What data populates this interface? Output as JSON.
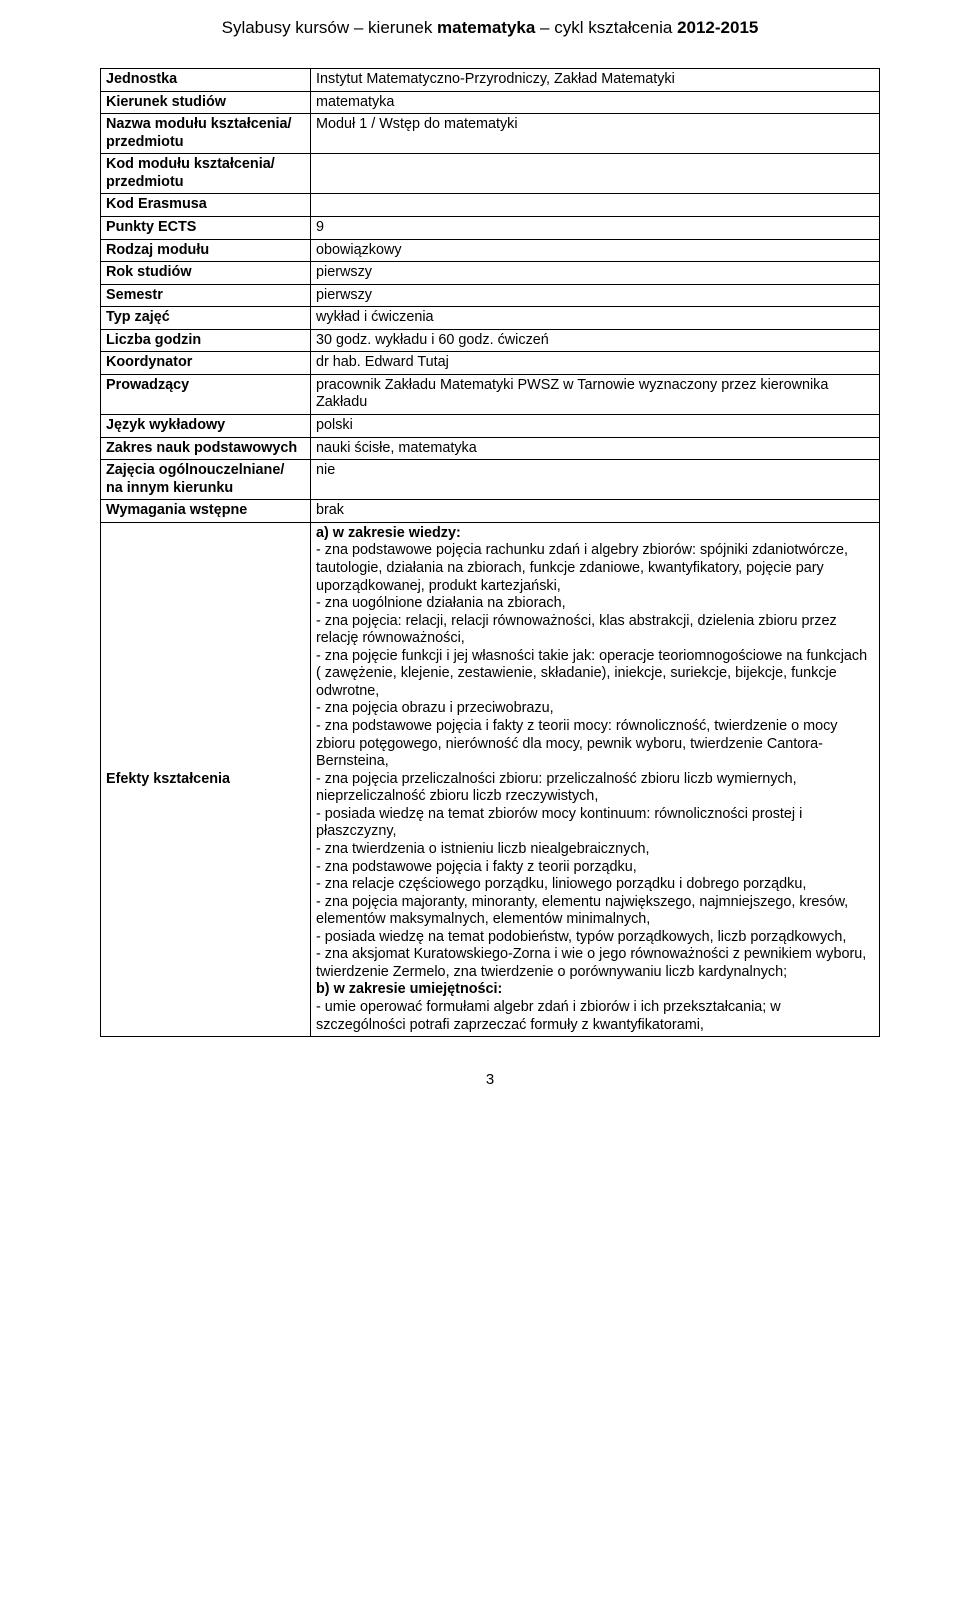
{
  "header": {
    "pre": "Sylabusy kursów – kierunek ",
    "kw1": "matematyka",
    "mid": " – cykl kształcenia ",
    "kw2": "2012-2015"
  },
  "rows": [
    {
      "label": "Jednostka",
      "value": "Instytut Matematyczno-Przyrodniczy, Zakład Matematyki"
    },
    {
      "label": "Kierunek studiów",
      "value": "matematyka"
    },
    {
      "label": "Nazwa modułu kształcenia/ przedmiotu",
      "value": "Moduł 1 / Wstęp do matematyki"
    },
    {
      "label": "Kod modułu kształcenia/ przedmiotu",
      "value": ""
    },
    {
      "label": "Kod Erasmusa",
      "value": ""
    },
    {
      "label": "Punkty ECTS",
      "value": "9"
    },
    {
      "label": "Rodzaj modułu",
      "value": "obowiązkowy"
    },
    {
      "label": "Rok studiów",
      "value": "pierwszy"
    },
    {
      "label": "Semestr",
      "value": "pierwszy"
    },
    {
      "label": "Typ zajęć",
      "value": "wykład i ćwiczenia"
    },
    {
      "label": "Liczba godzin",
      "value": "30 godz. wykładu i 60 godz. ćwiczeń"
    },
    {
      "label": "Koordynator",
      "value": "dr hab. Edward Tutaj"
    },
    {
      "label": "Prowadzący",
      "value": "pracownik Zakładu Matematyki PWSZ w Tarnowie wyznaczony przez kierownika Zakładu"
    },
    {
      "label": "Język wykładowy",
      "value": "polski"
    },
    {
      "label": "Zakres nauk podstawowych",
      "value": "nauki ścisłe, matematyka"
    },
    {
      "label": "Zajęcia ogólnouczelniane/ na innym kierunku",
      "value": "nie"
    },
    {
      "label": "Wymagania wstępne",
      "value": "brak"
    }
  ],
  "efekty": {
    "label": "Efekty kształcenia",
    "heading_a": "a) w zakresie wiedzy:",
    "lines_a": [
      "- zna podstawowe pojęcia rachunku zdań i algebry zbiorów: spójniki zdaniotwórcze, tautologie, działania na zbiorach, funkcje zdaniowe, kwantyfikatory, pojęcie pary uporządkowanej, produkt kartezjański,",
      "- zna uogólnione działania na zbiorach,",
      "- zna pojęcia: relacji, relacji równoważności, klas abstrakcji, dzielenia zbioru przez relację równoważności,",
      "- zna pojęcie funkcji i jej własności takie jak: operacje teoriomnogościowe na funkcjach ( zawężenie, klejenie, zestawienie, składanie), iniekcje, suriekcje, bijekcje, funkcje odwrotne,",
      "- zna pojęcia obrazu i przeciwobrazu,",
      "- zna podstawowe pojęcia i fakty z teorii mocy: równoliczność, twierdzenie o mocy zbioru potęgowego, nierówność dla mocy, pewnik wyboru, twierdzenie Cantora-Bernsteina,",
      "- zna pojęcia przeliczalności zbioru: przeliczalność zbioru liczb wymiernych, nieprzeliczalność zbioru liczb rzeczywistych,",
      "- posiada wiedzę na temat zbiorów mocy kontinuum: równoliczności prostej i płaszczyzny,",
      "- zna twierdzenia o istnieniu liczb niealgebraicznych,",
      "- zna podstawowe pojęcia i fakty z teorii porządku,",
      "- zna relacje częściowego porządku, liniowego porządku i dobrego porządku,",
      "- zna pojęcia majoranty, minoranty, elementu największego, najmniejszego, kresów, elementów maksymalnych, elementów minimalnych,",
      "- posiada wiedzę na temat podobieństw, typów porządkowych, liczb porządkowych,",
      "- zna aksjomat Kuratowskiego-Zorna i wie o  jego równoważności z pewnikiem wyboru, twierdzenie Zermelo, zna twierdzenie o porównywaniu liczb kardynalnych;"
    ],
    "heading_b": "b) w zakresie umiejętności:",
    "lines_b": [
      "- umie operować formułami algebr zdań i zbiorów i ich przekształcania; w szczególności potrafi  zaprzeczać formuły z kwantyfikatorami,"
    ]
  },
  "page_number": "3"
}
